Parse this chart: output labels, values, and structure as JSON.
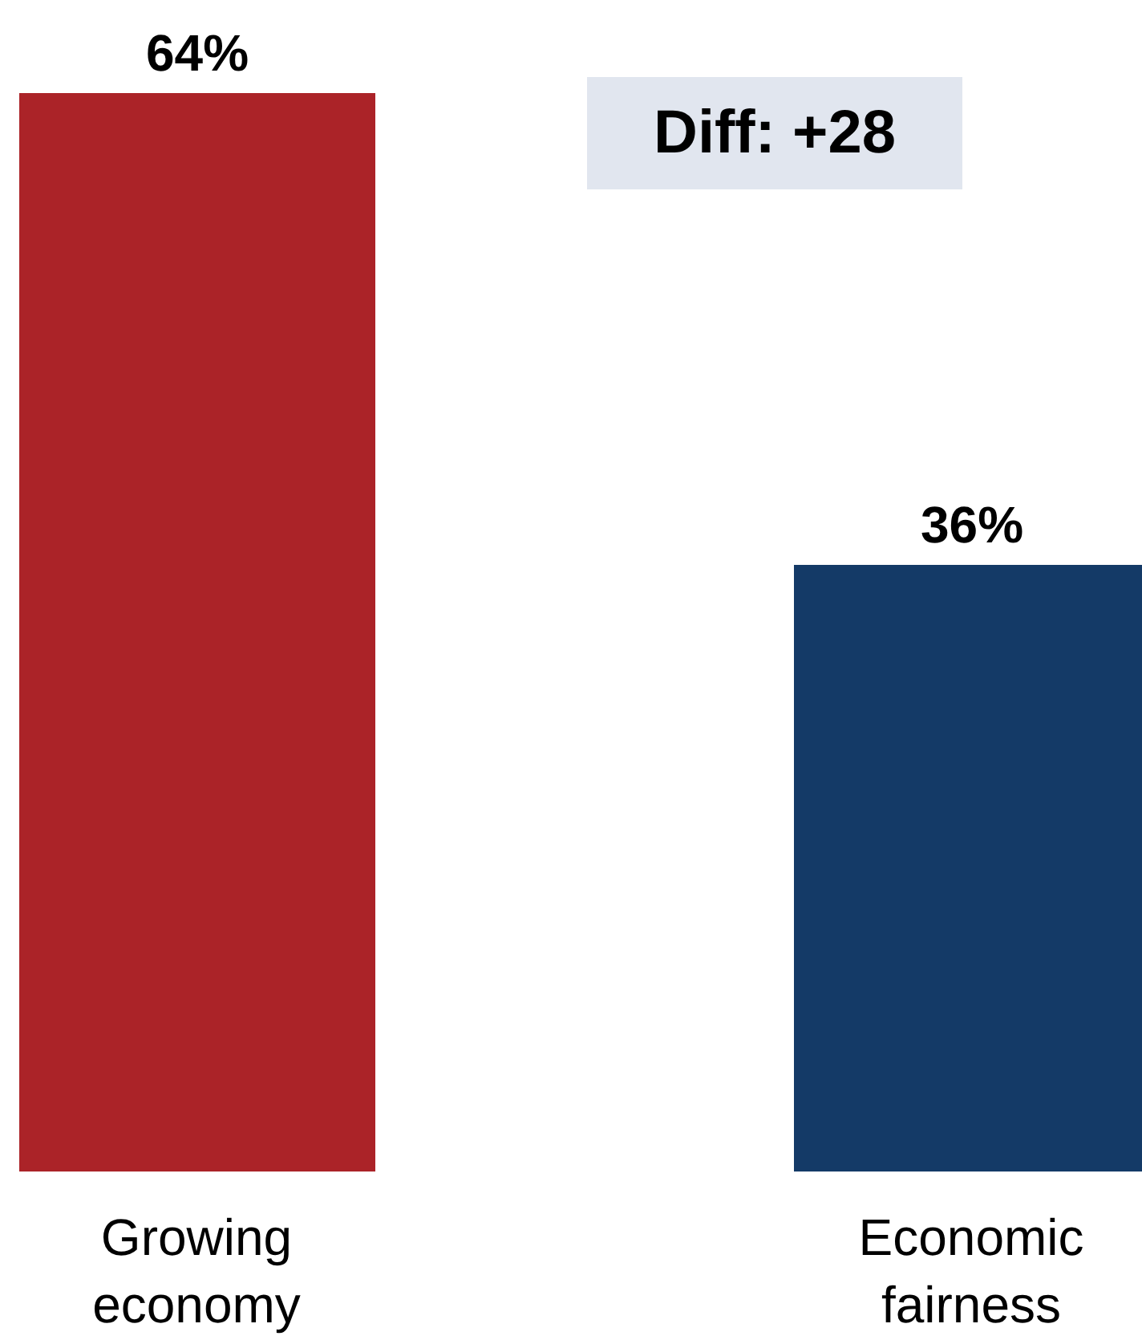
{
  "chart_data": {
    "type": "bar",
    "categories": [
      "Growing economy",
      "Economic fairness"
    ],
    "values": [
      64,
      36
    ],
    "colors": [
      "#ab2328",
      "#143a67"
    ],
    "value_labels": [
      "64%",
      "36%"
    ],
    "annotations": [
      "Diff: +28"
    ],
    "grid": false
  }
}
